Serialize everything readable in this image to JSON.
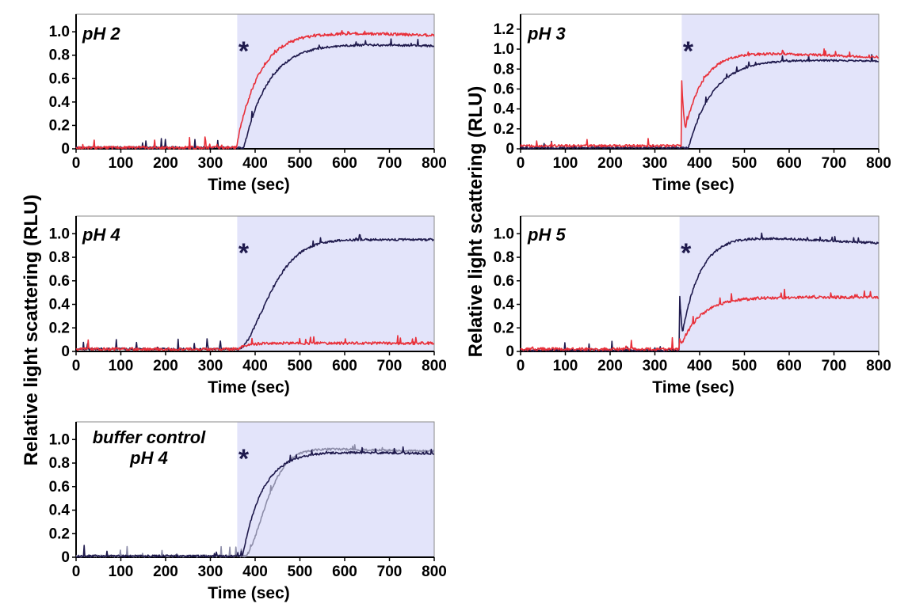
{
  "figure": {
    "shared_ylabels": [
      "Relative light scattering (RLU)",
      "Relative light scattering (RLU)"
    ]
  },
  "colors": {
    "navy": "#1f1a4d",
    "red": "#e8303a",
    "gray": "#8c8ca8",
    "shade": "#e3e4fa",
    "axis_frame": "#8a8a8a"
  },
  "chart_data": [
    {
      "id": "ph2",
      "type": "line",
      "title_lines": [
        "pH 2"
      ],
      "xlabel": "Time (sec)",
      "ylabel": "Relative light scattering (RLU)",
      "xlim": [
        0,
        800
      ],
      "ylim": [
        0,
        1.15
      ],
      "xticks": [
        0,
        100,
        200,
        300,
        400,
        500,
        600,
        700,
        800
      ],
      "yticks": [
        0,
        0.2,
        0.4,
        0.6,
        0.8,
        1.0
      ],
      "ytick_labels": [
        "0",
        "0.2",
        "0.4",
        "0.6",
        "0.8",
        "1.0"
      ],
      "shaded_region": [
        360,
        800
      ],
      "annotation": {
        "text": "*",
        "x": 362
      },
      "series": [
        {
          "name": "navy",
          "color": "navy",
          "baseline": 0.01,
          "start": 375,
          "plateau": 0.9,
          "tau": 55,
          "end": 0.88
        },
        {
          "name": "red",
          "color": "red",
          "baseline": 0.01,
          "start": 358,
          "plateau": 1.0,
          "tau": 50,
          "end": 0.97
        }
      ]
    },
    {
      "id": "ph3",
      "type": "line",
      "title_lines": [
        "pH 3"
      ],
      "xlabel": "Time (sec)",
      "ylabel": "Relative light scattering (RLU)",
      "xlim": [
        0,
        800
      ],
      "ylim": [
        0,
        1.35
      ],
      "xticks": [
        0,
        100,
        200,
        300,
        400,
        500,
        600,
        700,
        800
      ],
      "yticks": [
        0,
        0.2,
        0.4,
        0.6,
        0.8,
        1.0,
        1.2
      ],
      "ytick_labels": [
        "0",
        "0.2",
        "0.4",
        "0.6",
        "0.8",
        "1.0",
        "1.2"
      ],
      "shaded_region": [
        360,
        800
      ],
      "annotation": {
        "text": "*",
        "x": 362
      },
      "series": [
        {
          "name": "navy",
          "color": "navy",
          "baseline": 0.01,
          "start": 375,
          "plateau": 0.9,
          "tau": 55,
          "end": 0.88
        },
        {
          "name": "red",
          "color": "red",
          "baseline": 0.03,
          "start": 360,
          "plateau": 0.97,
          "tau": 40,
          "end": 0.92,
          "jump": 0.65
        }
      ]
    },
    {
      "id": "ph4",
      "type": "line",
      "title_lines": [
        "pH 4"
      ],
      "xlabel": "Time (sec)",
      "ylabel": "Relative light scattering (RLU)",
      "xlim": [
        0,
        800
      ],
      "ylim": [
        0,
        1.15
      ],
      "xticks": [
        0,
        100,
        200,
        300,
        400,
        500,
        600,
        700,
        800
      ],
      "yticks": [
        0,
        0.2,
        0.4,
        0.6,
        0.8,
        1.0
      ],
      "ytick_labels": [
        "0",
        "0.2",
        "0.4",
        "0.6",
        "0.8",
        "1.0"
      ],
      "shaded_region": [
        360,
        800
      ],
      "annotation": {
        "text": "*",
        "x": 362
      },
      "series": [
        {
          "name": "navy",
          "color": "navy",
          "baseline": 0.02,
          "start": 365,
          "plateau": 0.95,
          "tau": 85,
          "end": 0.95,
          "sigmoid": true
        },
        {
          "name": "red",
          "color": "red",
          "baseline": 0.02,
          "start": 362,
          "plateau": 0.07,
          "tau": 20,
          "end": 0.07
        }
      ]
    },
    {
      "id": "ph5",
      "type": "line",
      "title_lines": [
        "pH 5"
      ],
      "xlabel": "Time (sec)",
      "ylabel": "Relative light scattering (RLU)",
      "xlim": [
        0,
        800
      ],
      "ylim": [
        0,
        1.15
      ],
      "xticks": [
        0,
        100,
        200,
        300,
        400,
        500,
        600,
        700,
        800
      ],
      "yticks": [
        0,
        0.2,
        0.4,
        0.6,
        0.8,
        1.0
      ],
      "ytick_labels": [
        "0",
        "0.2",
        "0.4",
        "0.6",
        "0.8",
        "1.0"
      ],
      "shaded_region": [
        355,
        800
      ],
      "annotation": {
        "text": "*",
        "x": 357
      },
      "series": [
        {
          "name": "navy",
          "color": "navy",
          "baseline": 0.01,
          "start": 355,
          "plateau": 0.98,
          "tau": 40,
          "end": 0.92,
          "jump": 0.5
        },
        {
          "name": "red",
          "color": "red",
          "baseline": 0.02,
          "start": 355,
          "plateau": 0.46,
          "tau": 45,
          "end": 0.46,
          "jump": 0.1
        }
      ]
    },
    {
      "id": "buffer",
      "type": "line",
      "title_lines": [
        "buffer control",
        "pH 4"
      ],
      "xlabel": "Time (sec)",
      "ylabel": "Relative light scattering (RLU)",
      "xlim": [
        0,
        800
      ],
      "ylim": [
        0,
        1.15
      ],
      "xticks": [
        0,
        100,
        200,
        300,
        400,
        500,
        600,
        700,
        800
      ],
      "yticks": [
        0,
        0.2,
        0.4,
        0.6,
        0.8,
        1.0
      ],
      "ytick_labels": [
        "0",
        "0.2",
        "0.4",
        "0.6",
        "0.8",
        "1.0"
      ],
      "shaded_region": [
        360,
        800
      ],
      "annotation": {
        "text": "*",
        "x": 362
      },
      "series": [
        {
          "name": "gray",
          "color": "gray",
          "baseline": 0.01,
          "start": 378,
          "plateau": 0.92,
          "tau": 60,
          "end": 0.9,
          "sigmoid": true
        },
        {
          "name": "navy",
          "color": "navy",
          "baseline": 0.01,
          "start": 372,
          "plateau": 0.9,
          "tau": 45,
          "end": 0.88
        }
      ]
    }
  ]
}
